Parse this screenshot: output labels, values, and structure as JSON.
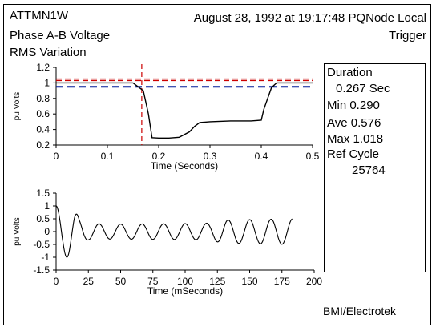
{
  "header": {
    "event_id": "ATTMN1W",
    "line2": "Phase A-B Voltage",
    "line3": "RMS Variation",
    "datetime": "August 28, 1992 at 19:17:48 PQNode Local",
    "trigger": "Trigger"
  },
  "info": {
    "duration_label": "Duration",
    "duration_value": "0.267 Sec",
    "min": "Min  0.290",
    "ave": "Ave  0.576",
    "max": "Max  1.018",
    "ref_cycle_label": "Ref Cycle",
    "ref_cycle_value": "25764"
  },
  "footer": {
    "credit": "BMI/Electrotek"
  },
  "colors": {
    "trace": "#000000",
    "limit_red": "#cc0000",
    "limit_blue": "#001a99"
  },
  "chart_data": [
    {
      "type": "line",
      "xlabel": "Time (Seconds)",
      "ylabel": "pu Volts",
      "xlim": [
        0,
        0.5
      ],
      "ylim": [
        0.2,
        1.2
      ],
      "x_ticks": [
        "0",
        "0.1",
        "0.2",
        "0.3",
        "0.4",
        "0.5"
      ],
      "y_ticks": [
        "0.2",
        "0.4",
        "0.6",
        "0.8",
        "1",
        "1.2"
      ],
      "grid": false,
      "series": [
        {
          "x": [
            0,
            0.15,
            0.17,
            0.18,
            0.187,
            0.2,
            0.22,
            0.24,
            0.26,
            0.27,
            0.28,
            0.3,
            0.34,
            0.38,
            0.4,
            0.405,
            0.42,
            0.43,
            0.5
          ],
          "y": [
            1.0,
            1.0,
            0.9,
            0.6,
            0.295,
            0.29,
            0.29,
            0.3,
            0.37,
            0.44,
            0.49,
            0.5,
            0.51,
            0.51,
            0.52,
            0.66,
            0.94,
            1.0,
            1.0
          ]
        }
      ],
      "limit_lines": {
        "red_upper": 1.05,
        "red_lower": 1.03,
        "blue": 0.95
      },
      "trigger_x": 0.167
    },
    {
      "type": "line",
      "xlabel": "Time (mSeconds)",
      "ylabel": "pu Volts",
      "xlim": [
        0,
        200
      ],
      "ylim": [
        -1.5,
        1.5
      ],
      "x_ticks": [
        "0",
        "25",
        "50",
        "75",
        "100",
        "125",
        "150",
        "175",
        "200"
      ],
      "y_ticks": [
        "-1.5",
        "-1",
        "-0.5",
        "0",
        "0.5",
        "1",
        "1.5"
      ],
      "grid": false,
      "series": [
        {
          "t_start": 0,
          "t_end": 183,
          "frequency_hz": 60,
          "envelope": {
            "t": [
              0,
              10,
              14,
              18,
              25,
              40,
              100,
              120,
              125,
              130,
              183
            ],
            "amp": [
              1.0,
              1.0,
              0.9,
              0.5,
              0.32,
              0.29,
              0.31,
              0.33,
              0.4,
              0.45,
              0.5
            ]
          }
        }
      ]
    }
  ]
}
